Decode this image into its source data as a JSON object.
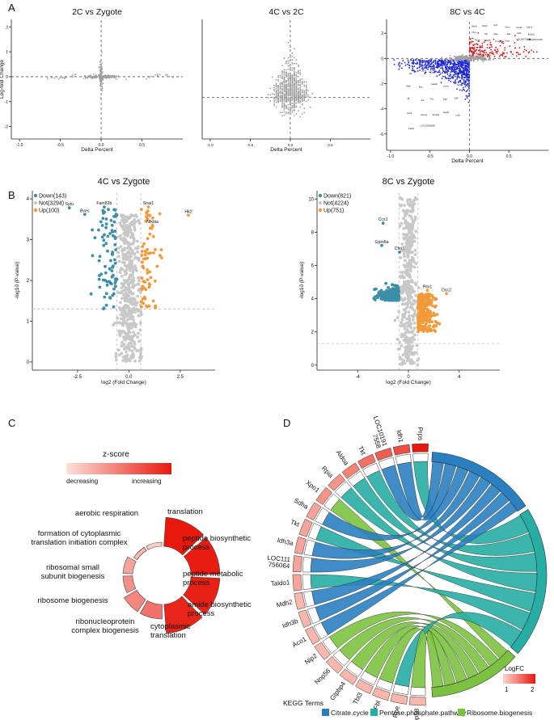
{
  "panel_letters": {
    "a": "A",
    "b": "B",
    "c": "C",
    "d": "D"
  },
  "colors": {
    "grey": "#9e9e9e",
    "blue": "#1f28d6",
    "red": "#d7191c",
    "teal": "#3d8ea7",
    "orange": "#f29a3a",
    "lgrey": "#c8c8c8",
    "cit": "#2a7fc1",
    "pen": "#27aea4",
    "rib": "#7cc240"
  },
  "chart_data": [
    {
      "type": "scatter",
      "id": "A1",
      "title": "2C vs Zygote",
      "xlabel": "Delta Percent",
      "ylabel": "Log-fold Change",
      "xlim": [
        -1.1,
        1.0
      ],
      "ylim": [
        -2.5,
        2.3
      ],
      "xticks": [
        {
          "v": -1.0,
          "l": "-1.0"
        },
        {
          "v": -0.5,
          "l": "-0.5"
        },
        {
          "v": 0.0,
          "l": "0.0"
        },
        {
          "v": 0.5,
          "l": "0.5"
        }
      ],
      "yticks": [
        {
          "v": 2,
          "l": "2"
        },
        {
          "v": 1,
          "l": "1"
        },
        {
          "v": 0,
          "l": "0"
        },
        {
          "v": -1,
          "l": "-1"
        },
        {
          "v": -2,
          "l": "-2"
        }
      ]
    },
    {
      "type": "scatter",
      "id": "A2",
      "title": "4C vs 2C",
      "xlabel": "Delta Percent",
      "ylabel": "",
      "xlim": [
        -1.1,
        1.0
      ],
      "ylim": [
        -1.6,
        3.0
      ],
      "xticks": [
        {
          "v": -1.0,
          "l": "-1.0"
        },
        {
          "v": -0.5,
          "l": "-0.5"
        },
        {
          "v": 0.0,
          "l": "0.0"
        },
        {
          "v": 0.5,
          "l": "0.5"
        }
      ],
      "yticks": []
    },
    {
      "type": "scatter",
      "id": "A3",
      "title": "8C vs 4C",
      "xlabel": "Delta Percent",
      "ylabel": "",
      "xlim": [
        -1.05,
        1.0
      ],
      "ylim": [
        -7.3,
        3.1
      ],
      "xticks": [
        {
          "v": -1.0,
          "l": "-1.0"
        },
        {
          "v": -0.5,
          "l": "-0.5"
        },
        {
          "v": 0.0,
          "l": "0.0"
        },
        {
          "v": 0.5,
          "l": "0.5"
        }
      ],
      "yticks": [
        {
          "v": 2,
          "l": "2"
        },
        {
          "v": 0,
          "l": "0"
        },
        {
          "v": -2,
          "l": "-2"
        },
        {
          "v": -4,
          "l": "-4"
        },
        {
          "v": -6,
          "l": "-6"
        }
      ],
      "labels_red": [
        "Rpl41",
        "Rps9",
        "Hprt",
        "Dnmt",
        "Ccnd1",
        "Calm1",
        "Ybx1",
        "Mif",
        "Ppia",
        "Ran",
        "Csf1",
        "Eef1a1",
        "Pcna",
        "Tubb5",
        "Hmgb1",
        "Rac1",
        "LOC100736696",
        "LOC100737268",
        "Sumo2"
      ],
      "labels_blue": [
        "Zfp",
        "Gpx4",
        "Ddx5",
        "Dcn",
        "Bcl2",
        "Nfkb",
        "Myc",
        "Gapdh",
        "Lmna",
        "Cd44",
        "Il6",
        "Jun",
        "Fos",
        "Egr1",
        "Klf4",
        "Sox2",
        "Nanog",
        "Pou5f1",
        "Tead4",
        "Cdx2",
        "Gata3",
        "LOC100620696"
      ]
    },
    {
      "type": "scatter",
      "id": "B1",
      "title": "4C vs Zygote",
      "xlabel": "log2 (Fold Change)",
      "ylabel": "-log10 (P-value)",
      "xlim": [
        -4.7,
        4.2
      ],
      "ylim": [
        -0.2,
        4.2
      ],
      "xticks": [
        {
          "v": -2.5,
          "l": "-2.5"
        },
        {
          "v": 0.0,
          "l": "0.0"
        },
        {
          "v": 2.5,
          "l": "2.5"
        }
      ],
      "yticks": [
        {
          "v": 0,
          "l": "0"
        },
        {
          "v": 1,
          "l": "1"
        },
        {
          "v": 2,
          "l": "2"
        },
        {
          "v": 3,
          "l": "3"
        },
        {
          "v": 4,
          "l": "4"
        }
      ],
      "legend": [
        {
          "label": "Down(143)",
          "color": "#3d8ea7"
        },
        {
          "label": "Not(3294)",
          "color": "#c8c8c8"
        },
        {
          "label": "Up(100)",
          "color": "#f29a3a"
        }
      ],
      "labeled_points": [
        {
          "name": "Sytu",
          "x": -2.9,
          "y": 3.78
        },
        {
          "name": "Bves",
          "x": -2.15,
          "y": 3.62
        },
        {
          "name": "Fam83b",
          "x": -1.2,
          "y": 3.8
        },
        {
          "name": "Snai1",
          "x": 0.95,
          "y": 3.8
        },
        {
          "name": "Nfkbia",
          "x": 1.15,
          "y": 3.35
        },
        {
          "name": "Hk2",
          "x": 2.9,
          "y": 3.6
        }
      ]
    },
    {
      "type": "scatter",
      "id": "B2",
      "title": "8C vs Zygote",
      "xlabel": "log2 (Fold Change)",
      "ylabel": "-log10 (P-value)",
      "xlim": [
        -7.2,
        7.2
      ],
      "ylim": [
        -0.3,
        10.5
      ],
      "xticks": [
        {
          "v": -4,
          "l": "-4"
        },
        {
          "v": 0,
          "l": "0"
        },
        {
          "v": 4,
          "l": "4"
        }
      ],
      "yticks": [
        {
          "v": 0,
          "l": "0"
        },
        {
          "v": 2,
          "l": "2"
        },
        {
          "v": 4,
          "l": "4"
        },
        {
          "v": 6,
          "l": "6"
        },
        {
          "v": 8,
          "l": "8"
        },
        {
          "v": 10,
          "l": "10"
        }
      ],
      "legend": [
        {
          "label": "Down(821)",
          "color": "#3d8ea7"
        },
        {
          "label": "Not(4224)",
          "color": "#c8c8c8"
        },
        {
          "label": "Up(751)",
          "color": "#f29a3a"
        }
      ],
      "labeled_points": [
        {
          "name": "Ccs1",
          "x": -2.0,
          "y": 8.55
        },
        {
          "name": "Gpm6a",
          "x": -2.1,
          "y": 7.2
        },
        {
          "name": "Chn1",
          "x": -0.7,
          "y": 6.8
        },
        {
          "name": "Pitx1",
          "x": 1.5,
          "y": 4.5
        },
        {
          "name": "Dsc2",
          "x": 3.0,
          "y": 4.3
        }
      ]
    },
    {
      "type": "radial-bar",
      "id": "C",
      "legend_title": "z-score",
      "legend_low": "decreasing",
      "legend_high": "increasing",
      "segments": [
        {
          "label": "translation",
          "z": 1.0
        },
        {
          "label": "peptide biosynthetic process",
          "z": 0.98
        },
        {
          "label": "peptide metabolic process",
          "z": 0.96
        },
        {
          "label": "amide biosynthetic process",
          "z": 0.94
        },
        {
          "label": "cytoplasmic translation",
          "z": 0.55
        },
        {
          "label": "ribonucleoprotein complex biogenesis",
          "z": 0.45
        },
        {
          "label": "ribosome biogenesis",
          "z": 0.4
        },
        {
          "label": "ribosomal small subunit biogenesis",
          "z": 0.3
        },
        {
          "label": "formation of cytoplasmic translation initiation complex",
          "z": 0.2
        },
        {
          "label": "aerobic respiration",
          "z": 0.1
        }
      ]
    },
    {
      "type": "chord",
      "id": "D",
      "genes": [
        {
          "name": "Prps",
          "fc": 2.0,
          "term": 1
        },
        {
          "name": "Idh1",
          "fc": 1.7,
          "term": 0
        },
        {
          "name": "LOC101917558",
          "fc": 1.6,
          "term": 0
        },
        {
          "name": "Tkt",
          "fc": 1.5,
          "term": 1
        },
        {
          "name": "Aldoa",
          "fc": 1.4,
          "term": 1
        },
        {
          "name": "Rpia",
          "fc": 1.3,
          "term": 1
        },
        {
          "name": "Xpo1",
          "fc": 1.3,
          "term": 2
        },
        {
          "name": "Sdha",
          "fc": 1.2,
          "term": 0
        },
        {
          "name": "Tkt",
          "fc": 1.2,
          "term": 1
        },
        {
          "name": "Idh3a",
          "fc": 1.2,
          "term": 0
        },
        {
          "name": "LOC111756064",
          "fc": 1.2,
          "term": 0
        },
        {
          "name": "Taldo1",
          "fc": 1.2,
          "term": 1
        },
        {
          "name": "Mdh2",
          "fc": 1.1,
          "term": 0
        },
        {
          "name": "Idh3b",
          "fc": 1.1,
          "term": 0
        },
        {
          "name": "Aco1",
          "fc": 1.1,
          "term": 0
        },
        {
          "name": "Nip2",
          "fc": 1.1,
          "term": 2
        },
        {
          "name": "Nop56",
          "fc": 1.1,
          "term": 2
        },
        {
          "name": "Gtpbp4",
          "fc": 1.1,
          "term": 2
        },
        {
          "name": "Tbl3",
          "fc": 1.1,
          "term": 2
        },
        {
          "name": "Fbl",
          "fc": 1.1,
          "term": 2
        },
        {
          "name": "Rpe",
          "fc": 1.1,
          "term": 1
        },
        {
          "name": "Nop58",
          "fc": 1.1,
          "term": 2
        }
      ],
      "gene_labels": [
        "Prps",
        "Idh1",
        "LOC101917558",
        "Tkt",
        "Aldoa",
        "Rpia",
        "Xpo1",
        "Sdha",
        "Tkt",
        "Idh3a",
        "LOC111756064",
        "Taldo1",
        "Mdh2",
        "Idh3b",
        "Aco1",
        "Nip2",
        "Nop56",
        "Gtpbp4",
        "Tbl3",
        "Fbl",
        "Rpe",
        "Nop58"
      ],
      "gene_label_lines": [
        [
          "Prps"
        ],
        [
          "Idh1"
        ],
        [
          "LOC10191",
          "7558"
        ],
        [
          "Tkt"
        ],
        [
          "Aldoa"
        ],
        [
          "Rpia"
        ],
        [
          "Xpo1"
        ],
        [
          "Sdha"
        ],
        [
          "Tkt"
        ],
        [
          "Idh3a"
        ],
        [
          "LOC111",
          "756064"
        ],
        [
          "Taldo1"
        ],
        [
          "Mdh2"
        ],
        [
          "Idh3b"
        ],
        [
          "Aco1"
        ],
        [
          "Nip2"
        ],
        [
          "Nop56"
        ],
        [
          "Gtpbp4"
        ],
        [
          "Tbl3"
        ],
        [
          "Fbl"
        ],
        [
          "Rpe"
        ],
        [
          "Nop58"
        ]
      ],
      "terms": [
        {
          "name": "Citrate.cycle",
          "color": "#2a7fc1"
        },
        {
          "name": "Pentose.phosphate.pathway",
          "color": "#27aea4"
        },
        {
          "name": "Ribosome.biogenesis",
          "color": "#7cc240"
        }
      ],
      "terms_title": "KEGG Terms",
      "logfc_title": "LogFC",
      "logfc_ticks": [
        "1",
        "2"
      ]
    }
  ]
}
